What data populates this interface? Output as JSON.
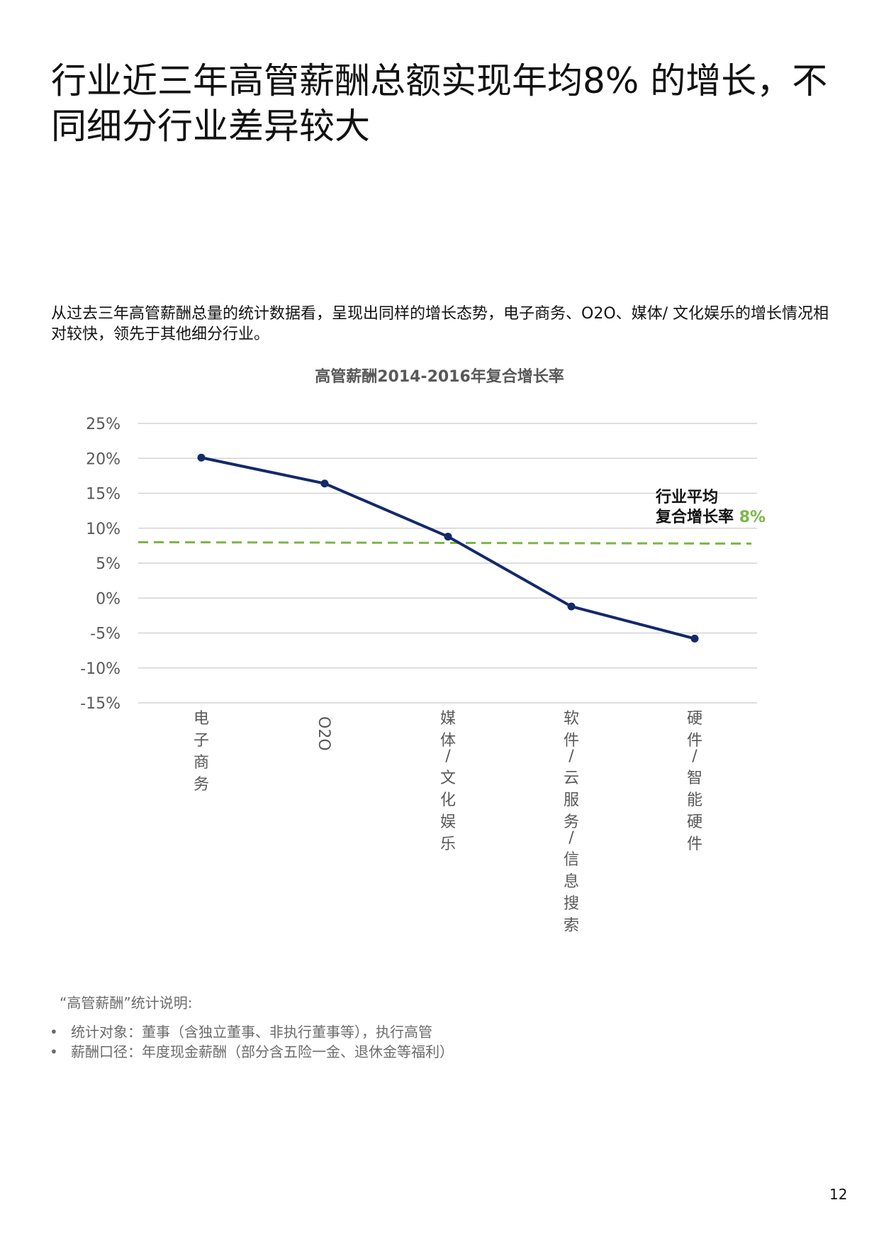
{
  "page": {
    "title": "行业近三年高管薪酬总额实现年均8% 的增长，不同细分行业差异较大",
    "intro": "从过去三年高管薪酬总量的统计数据看，呈现出同样的增长态势，电子商务、O2O、媒体/ 文化娱乐的增长情况相对较快，领先于其他细分行业。",
    "annotation": {
      "line1": "行业平均",
      "line2": "复合增长率",
      "value": "8%"
    },
    "notes": {
      "heading": "“高管薪酬”统计说明:",
      "items": [
        "统计对象：董事（含独立董事、非执行董事等），执行高管",
        "薪酬口径：年度现金薪酬（部分含五险一金、退休金等福利）"
      ]
    },
    "page_number": "12"
  },
  "chart_data": {
    "type": "line",
    "title": "高管薪酬2014-2016年复合增长率",
    "categories": [
      "电子商务",
      "O2O",
      "媒体/ 文化娱乐",
      "软件/ 云服务/ 信息搜索",
      "硬件/ 智能硬件"
    ],
    "series": [
      {
        "values": [
          20.1,
          16.4,
          8.8,
          -1.2,
          -5.8
        ]
      }
    ],
    "reference_line": {
      "value": 8
    },
    "ylim": [
      -15,
      25
    ],
    "yticks": [
      25,
      20,
      15,
      10,
      5,
      0,
      -5,
      -10,
      -15
    ],
    "ytick_labels": [
      "25%",
      "20%",
      "15%",
      "10%",
      "5%",
      "0%",
      "-5%",
      "-10%",
      "-15%"
    ],
    "grid": true,
    "colors": {
      "line": "#14296b",
      "reference": "#7ab648",
      "grid": "#d4d4d4",
      "labels": "#595959"
    }
  }
}
